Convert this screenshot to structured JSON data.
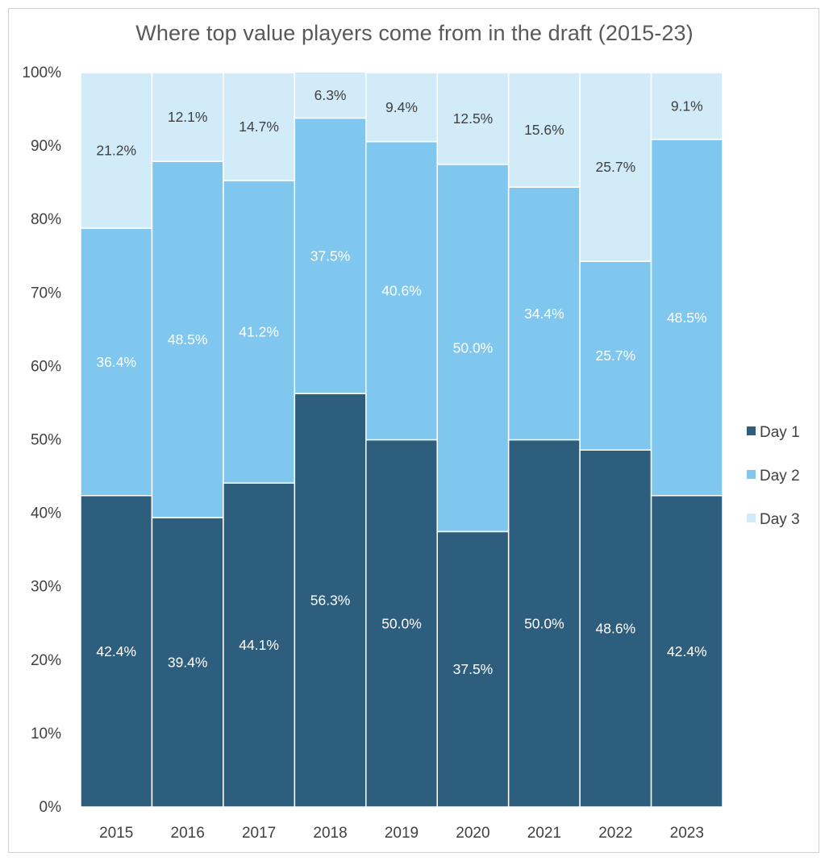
{
  "chart_data": {
    "type": "bar",
    "stacked": true,
    "normalized": true,
    "title": "Where top value players come from in the draft (2015-23)",
    "xlabel": "",
    "ylabel": "",
    "ylim": [
      0,
      100
    ],
    "yticks": [
      "0%",
      "10%",
      "20%",
      "30%",
      "40%",
      "50%",
      "60%",
      "70%",
      "80%",
      "90%",
      "100%"
    ],
    "categories": [
      "2015",
      "2016",
      "2017",
      "2018",
      "2019",
      "2020",
      "2021",
      "2022",
      "2023"
    ],
    "series": [
      {
        "name": "Day 1",
        "color": "#2e5e7e",
        "label_color": "#ffffff",
        "values": [
          42.4,
          39.4,
          44.1,
          56.3,
          50.0,
          37.5,
          50.0,
          48.6,
          42.4
        ],
        "labels": [
          "42.4%",
          "39.4%",
          "44.1%",
          "56.3%",
          "50.0%",
          "37.5%",
          "50.0%",
          "48.6%",
          "42.4%"
        ]
      },
      {
        "name": "Day 2",
        "color": "#7fc7ef",
        "label_color": "#ffffff",
        "values": [
          36.4,
          48.5,
          41.2,
          37.5,
          40.6,
          50.0,
          34.4,
          25.7,
          48.5
        ],
        "labels": [
          "36.4%",
          "48.5%",
          "41.2%",
          "37.5%",
          "40.6%",
          "50.0%",
          "34.4%",
          "25.7%",
          "48.5%"
        ]
      },
      {
        "name": "Day 3",
        "color": "#d2ebf8",
        "label_color": "#404040",
        "values": [
          21.2,
          12.1,
          14.7,
          6.3,
          9.4,
          12.5,
          15.6,
          25.7,
          9.1
        ],
        "labels": [
          "21.2%",
          "12.1%",
          "14.7%",
          "6.3%",
          "9.4%",
          "12.5%",
          "15.6%",
          "25.7%",
          "9.1%"
        ]
      }
    ],
    "legend": {
      "position": "right"
    }
  }
}
